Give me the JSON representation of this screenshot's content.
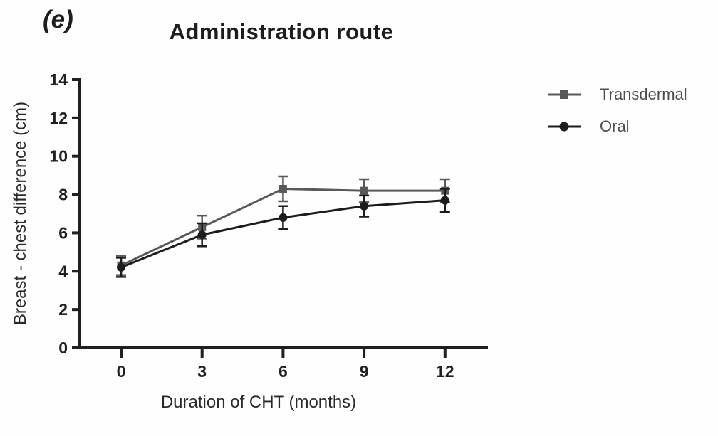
{
  "panel_label": "(e)",
  "title": "Administration route",
  "legend": {
    "items": [
      {
        "label": "Transdermal",
        "marker": "square",
        "color": "#58595b"
      },
      {
        "label": "Oral",
        "marker": "circle",
        "color": "#1c1c1e"
      }
    ]
  },
  "chart_data": {
    "type": "line",
    "title": "Administration route",
    "xlabel": "Duration of CHT (months)",
    "ylabel": "Breast - chest difference (cm)",
    "x": [
      0,
      3,
      6,
      9,
      12
    ],
    "xticks": [
      "0",
      "3",
      "6",
      "9",
      "12"
    ],
    "yticks": [
      "0",
      "2",
      "4",
      "6",
      "8",
      "10",
      "12",
      "14"
    ],
    "xlim": [
      0,
      13.6
    ],
    "ylim": [
      0,
      14
    ],
    "grid": false,
    "error_bars": true,
    "legend_position": "right",
    "axis_color": "#231f20",
    "series": [
      {
        "name": "Transdermal",
        "marker": "square",
        "color": "#58595b",
        "values": [
          4.3,
          6.3,
          8.3,
          8.2,
          8.2
        ],
        "errors": [
          0.5,
          0.6,
          0.65,
          0.6,
          0.6
        ]
      },
      {
        "name": "Oral",
        "marker": "circle",
        "color": "#1c1c1e",
        "values": [
          4.2,
          5.9,
          6.8,
          7.4,
          7.7
        ],
        "errors": [
          0.5,
          0.6,
          0.6,
          0.55,
          0.6
        ]
      }
    ]
  }
}
